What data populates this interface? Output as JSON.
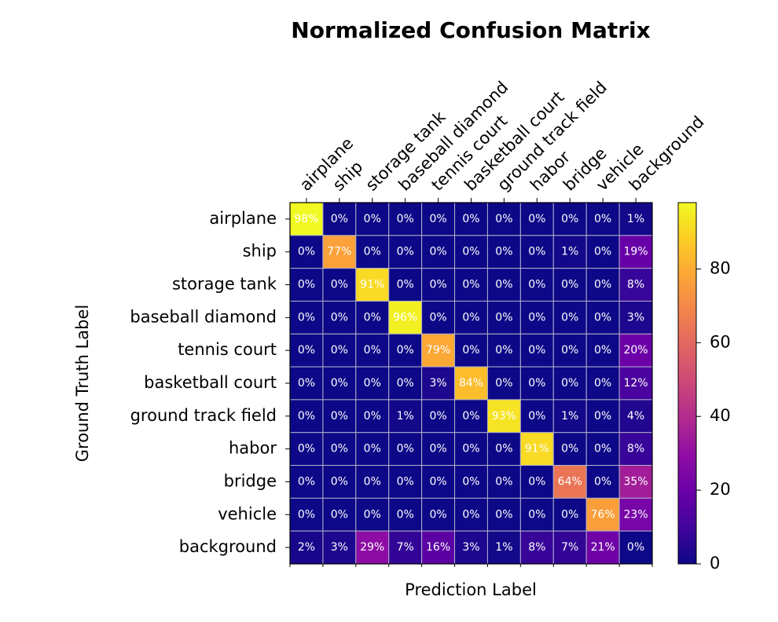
{
  "chart_data": {
    "type": "heatmap",
    "title": "Normalized Confusion Matrix",
    "x_label": "Prediction Label",
    "y_label": "Ground Truth Label",
    "x_categories": [
      "airplane",
      "ship",
      "storage tank",
      "baseball diamond",
      "tennis court",
      "basketball court",
      "ground track field",
      "habor",
      "bridge",
      "vehicle",
      "background"
    ],
    "y_categories": [
      "airplane",
      "ship",
      "storage tank",
      "baseball diamond",
      "tennis court",
      "basketball court",
      "ground track field",
      "habor",
      "bridge",
      "vehicle",
      "background"
    ],
    "values": [
      [
        98,
        0,
        0,
        0,
        0,
        0,
        0,
        0,
        0,
        0,
        1
      ],
      [
        0,
        77,
        0,
        0,
        0,
        0,
        0,
        0,
        1,
        0,
        19
      ],
      [
        0,
        0,
        91,
        0,
        0,
        0,
        0,
        0,
        0,
        0,
        8
      ],
      [
        0,
        0,
        0,
        96,
        0,
        0,
        0,
        0,
        0,
        0,
        3
      ],
      [
        0,
        0,
        0,
        0,
        79,
        0,
        0,
        0,
        0,
        0,
        20
      ],
      [
        0,
        0,
        0,
        0,
        3,
        84,
        0,
        0,
        0,
        0,
        12
      ],
      [
        0,
        0,
        0,
        1,
        0,
        0,
        93,
        0,
        1,
        0,
        4
      ],
      [
        0,
        0,
        0,
        0,
        0,
        0,
        0,
        91,
        0,
        0,
        8
      ],
      [
        0,
        0,
        0,
        0,
        0,
        0,
        0,
        0,
        64,
        0,
        35
      ],
      [
        0,
        0,
        0,
        0,
        0,
        0,
        0,
        0,
        0,
        76,
        23
      ],
      [
        2,
        3,
        29,
        7,
        16,
        3,
        1,
        8,
        7,
        21,
        0
      ]
    ],
    "value_labels": [
      [
        "98%",
        "0%",
        "0%",
        "0%",
        "0%",
        "0%",
        "0%",
        "0%",
        "0%",
        "0%",
        "1%"
      ],
      [
        "0%",
        "77%",
        "0%",
        "0%",
        "0%",
        "0%",
        "0%",
        "0%",
        "1%",
        "0%",
        "19%"
      ],
      [
        "0%",
        "0%",
        "91%",
        "0%",
        "0%",
        "0%",
        "0%",
        "0%",
        "0%",
        "0%",
        "8%"
      ],
      [
        "0%",
        "0%",
        "0%",
        "96%",
        "0%",
        "0%",
        "0%",
        "0%",
        "0%",
        "0%",
        "3%"
      ],
      [
        "0%",
        "0%",
        "0%",
        "0%",
        "79%",
        "0%",
        "0%",
        "0%",
        "0%",
        "0%",
        "20%"
      ],
      [
        "0%",
        "0%",
        "0%",
        "0%",
        "3%",
        "84%",
        "0%",
        "0%",
        "0%",
        "0%",
        "12%"
      ],
      [
        "0%",
        "0%",
        "0%",
        "1%",
        "0%",
        "0%",
        "93%",
        "0%",
        "1%",
        "0%",
        "4%"
      ],
      [
        "0%",
        "0%",
        "0%",
        "0%",
        "0%",
        "0%",
        "0%",
        "91%",
        "0%",
        "0%",
        "8%"
      ],
      [
        "0%",
        "0%",
        "0%",
        "0%",
        "0%",
        "0%",
        "0%",
        "0%",
        "64%",
        "0%",
        "35%"
      ],
      [
        "0%",
        "0%",
        "0%",
        "0%",
        "0%",
        "0%",
        "0%",
        "0%",
        "0%",
        "76%",
        "23%"
      ],
      [
        "2%",
        "3%",
        "29%",
        "7%",
        "16%",
        "3%",
        "1%",
        "8%",
        "7%",
        "21%",
        "0%"
      ]
    ],
    "colormap": "plasma",
    "clim": [
      0,
      98
    ],
    "colorbar_ticks": [
      0,
      20,
      40,
      60,
      80
    ]
  }
}
